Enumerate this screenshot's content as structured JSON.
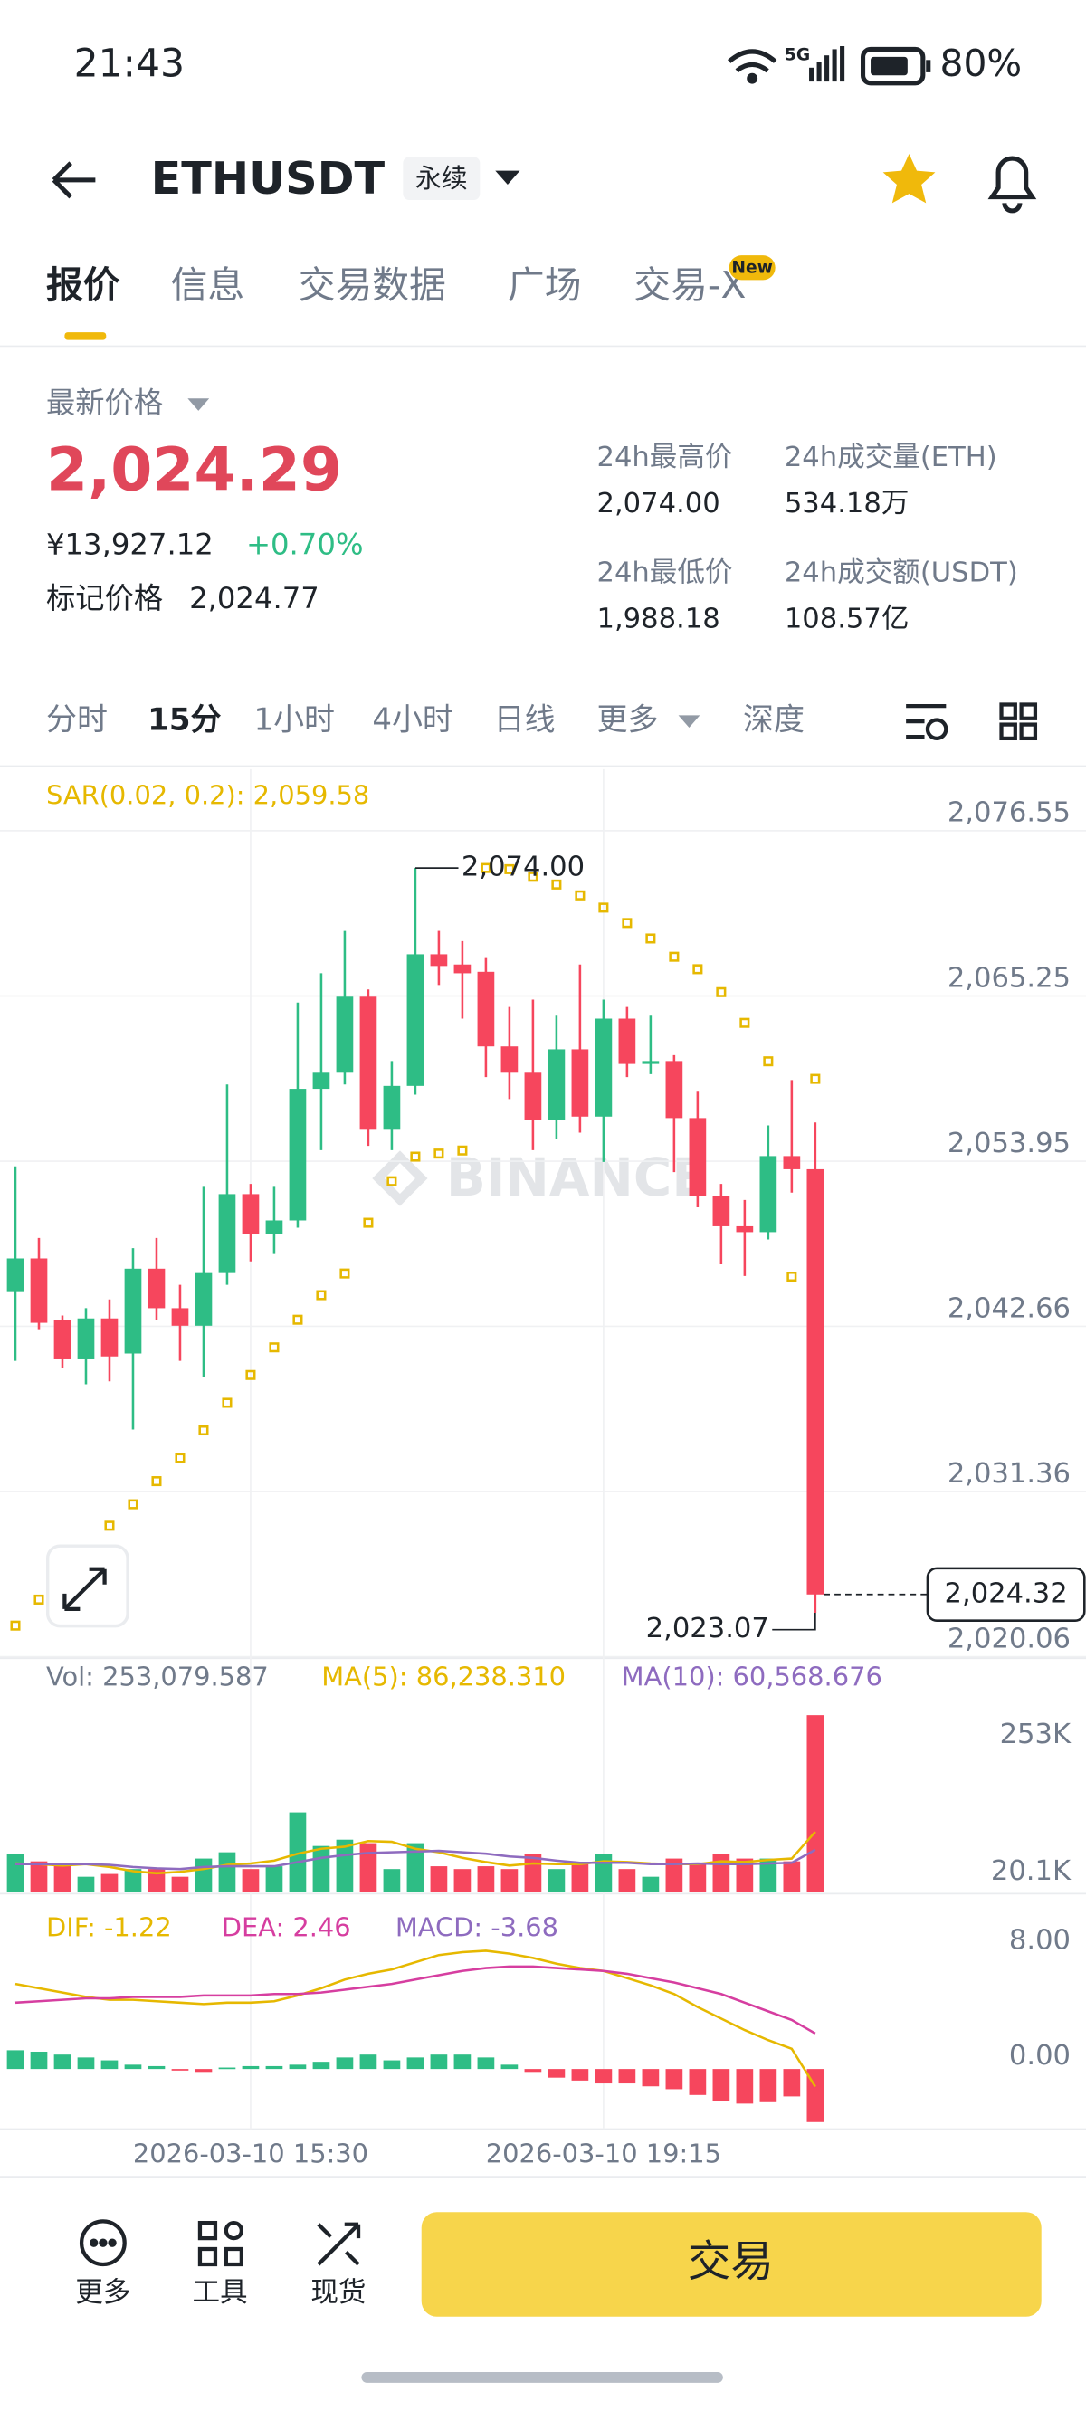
{
  "status_bar": {
    "time": "21:43",
    "network": "5G",
    "battery": "80%"
  },
  "header": {
    "symbol": "ETHUSDT",
    "contract_type": "永续"
  },
  "tabs": [
    "报价",
    "信息",
    "交易数据",
    "广场",
    "交易-X"
  ],
  "tab_badge": "New",
  "price_panel": {
    "label": "最新价格",
    "last_price": "2,024.29",
    "cny_price": "¥13,927.12",
    "change": "+0.70%",
    "mark_price_label": "标记价格",
    "mark_price": "2,024.77",
    "stats": [
      {
        "label": "24h最高价",
        "value": "2,074.00"
      },
      {
        "label": "24h成交量(ETH)",
        "value": "534.18万"
      },
      {
        "label": "24h最低价",
        "value": "1,988.18"
      },
      {
        "label": "24h成交额(USDT)",
        "value": "108.57亿"
      }
    ]
  },
  "intervals": [
    "分时",
    "15分",
    "1小时",
    "4小时",
    "日线",
    "更多",
    "深度"
  ],
  "chart": {
    "type": "candlestick",
    "watermark": "BINANCE",
    "up_color": "#2ebd85",
    "down_color": "#f6465d",
    "categories": [
      null,
      null,
      null,
      null,
      null,
      null,
      null,
      null,
      null,
      null,
      "2026-03-10 15:30",
      null,
      null,
      null,
      null,
      null,
      null,
      null,
      null,
      null,
      null,
      null,
      null,
      null,
      null,
      "2026-03-10 19:15",
      null,
      null,
      null,
      null,
      null,
      null,
      null,
      null,
      null
    ],
    "open": [
      2045.0,
      2047.3,
      2043.1,
      2040.4,
      2043.2,
      2040.8,
      2046.6,
      2043.9,
      2042.7,
      2046.3,
      2051.7,
      2049.0,
      2049.9,
      2058.9,
      2060.0,
      2065.2,
      2056.1,
      2059.1,
      2068.1,
      2067.4,
      2066.9,
      2061.8,
      2060.0,
      2056.8,
      2061.6,
      2057.0,
      2063.7,
      2060.6,
      2060.8,
      2056.9,
      2051.6,
      2049.5,
      2049.1,
      2054.3,
      2053.4
    ],
    "high": [
      2053.6,
      2048.7,
      2043.4,
      2043.9,
      2044.5,
      2048.0,
      2048.7,
      2045.5,
      2052.2,
      2059.2,
      2052.4,
      2052.2,
      2064.8,
      2066.8,
      2069.7,
      2065.7,
      2060.8,
      2074.0,
      2069.7,
      2069.0,
      2067.9,
      2064.5,
      2065.0,
      2063.9,
      2067.4,
      2065.0,
      2064.5,
      2063.9,
      2061.2,
      2058.7,
      2052.4,
      2051.3,
      2056.4,
      2059.5,
      2056.6
    ],
    "low": [
      2040.3,
      2042.4,
      2039.8,
      2038.7,
      2038.9,
      2035.6,
      2043.1,
      2040.3,
      2039.2,
      2045.5,
      2047.1,
      2047.6,
      2049.4,
      2054.7,
      2059.2,
      2055.0,
      2054.7,
      2058.5,
      2066.0,
      2063.7,
      2059.7,
      2058.2,
      2054.7,
      2055.5,
      2055.9,
      2053.9,
      2059.7,
      2059.9,
      2053.2,
      2050.8,
      2046.9,
      2046.1,
      2048.6,
      2051.8,
      2023.07
    ],
    "close": [
      2047.3,
      2042.9,
      2040.4,
      2043.2,
      2040.6,
      2046.6,
      2043.9,
      2042.7,
      2046.3,
      2051.7,
      2049.0,
      2049.9,
      2058.9,
      2060.0,
      2065.2,
      2056.1,
      2059.1,
      2068.1,
      2067.3,
      2066.8,
      2061.8,
      2060.0,
      2056.8,
      2061.6,
      2057.0,
      2063.7,
      2060.6,
      2060.8,
      2056.9,
      2051.6,
      2049.5,
      2049.1,
      2054.3,
      2053.4,
      2024.32
    ],
    "ylim": [
      2020.06,
      2080.76
    ],
    "yticks": [
      {
        "value": 2076.55,
        "label": "2,076.55"
      },
      {
        "value": 2065.25,
        "label": "2,065.25"
      },
      {
        "value": 2053.95,
        "label": "2,053.95"
      },
      {
        "value": 2042.66,
        "label": "2,042.66"
      },
      {
        "value": 2031.36,
        "label": "2,031.36"
      },
      {
        "value": 2020.06,
        "label": "2,020.06"
      }
    ],
    "high_label": "2,074.00",
    "low_label": "2,023.07",
    "current_price": {
      "value": 2024.32,
      "label": "2,024.32"
    },
    "sar": {
      "label": "SAR(0.02, 0.2): 2,059.58",
      "color": "#e6b800",
      "values": [
        2022.19,
        2023.97,
        2025.66,
        2027.34,
        2029.02,
        2030.49,
        2032.07,
        2033.65,
        2035.54,
        2037.43,
        2039.33,
        2041.22,
        2043.11,
        2044.79,
        2046.27,
        2049.74,
        2052.58,
        2054.26,
        2054.47,
        2054.68,
        2074.0,
        2073.92,
        2073.4,
        2072.87,
        2072.13,
        2071.29,
        2070.24,
        2069.18,
        2067.93,
        2067.08,
        2065.51,
        2063.41,
        2060.78,
        2046.06,
        2059.58
      ]
    },
    "volume": {
      "legend": [
        {
          "text": "Vol: 253,079.587",
          "color": "#707a8a"
        },
        {
          "text": "MA(5): 86,238.310",
          "color": "#e6b800"
        },
        {
          "text": "MA(10): 60,568.676",
          "color": "#8e6bbf"
        }
      ],
      "values": [
        55000,
        44000,
        40000,
        22000,
        26000,
        33000,
        33000,
        22000,
        48000,
        57000,
        33000,
        37000,
        114000,
        66000,
        75000,
        70000,
        33000,
        70000,
        37000,
        33000,
        37000,
        33000,
        55000,
        33000,
        40000,
        55000,
        33000,
        22000,
        48000,
        40000,
        55000,
        48000,
        48000,
        44000,
        253079.587
      ],
      "ma5": {
        "color": "#e6b800",
        "values": [
          41000,
          40000,
          38000,
          40000,
          36000,
          30000,
          27000,
          29000,
          33000,
          39000,
          41000,
          45000,
          55000,
          62000,
          65000,
          73000,
          72000,
          62000,
          57000,
          49000,
          43000,
          38000,
          41000,
          40000,
          40000,
          44000,
          43000,
          41000,
          40000,
          40000,
          44000,
          43000,
          46000,
          48000,
          86238.31
        ]
      },
      "ma10": {
        "color": "#8e6bbf",
        "values": [
          40000,
          40000,
          40000,
          40000,
          39000,
          36000,
          34000,
          33000,
          36000,
          37000,
          37000,
          37000,
          43000,
          49000,
          53000,
          56000,
          57000,
          58000,
          59000,
          57000,
          55000,
          51000,
          49000,
          45000,
          42000,
          42000,
          42000,
          40000,
          40000,
          41000,
          40000,
          40000,
          41000,
          42000,
          60568.676
        ]
      },
      "ylim": [
        0,
        275000
      ],
      "yticks": [
        {
          "value": 253000,
          "label": "253K"
        },
        {
          "value": 20100,
          "label": "20.1K"
        }
      ]
    },
    "macd": {
      "legend": [
        {
          "text": "DIF: -1.22",
          "color": "#e6b800"
        },
        {
          "text": "DEA: 2.46",
          "color": "#d63ea0"
        },
        {
          "text": "MACD: -3.68",
          "color": "#8e6bbf"
        }
      ],
      "dif": {
        "color": "#e6b800",
        "values": [
          5.9,
          5.6,
          5.3,
          5.0,
          4.8,
          4.8,
          4.7,
          4.6,
          4.5,
          4.6,
          4.6,
          4.7,
          5.1,
          5.6,
          6.2,
          6.6,
          6.9,
          7.4,
          7.9,
          8.1,
          8.2,
          8.0,
          7.7,
          7.3,
          7.0,
          6.8,
          6.3,
          5.8,
          5.2,
          4.3,
          3.5,
          2.7,
          2.0,
          1.4,
          -1.22
        ]
      },
      "dea": {
        "color": "#d63ea0",
        "values": [
          4.6,
          4.7,
          4.8,
          4.9,
          4.9,
          5.0,
          5.0,
          5.0,
          5.1,
          5.1,
          5.1,
          5.2,
          5.2,
          5.3,
          5.5,
          5.7,
          5.9,
          6.2,
          6.5,
          6.8,
          7.0,
          7.1,
          7.1,
          7.0,
          6.9,
          6.8,
          6.6,
          6.3,
          6.0,
          5.6,
          5.2,
          4.6,
          4.0,
          3.4,
          2.46
        ]
      },
      "hist": [
        1.3,
        1.2,
        1.0,
        0.8,
        0.6,
        0.3,
        0.2,
        -0.1,
        -0.2,
        0.1,
        0.2,
        0.2,
        0.3,
        0.5,
        0.8,
        1.0,
        0.6,
        0.8,
        1.0,
        1.0,
        0.8,
        0.3,
        -0.2,
        -0.6,
        -0.8,
        -1.0,
        -1.0,
        -1.2,
        -1.4,
        -1.8,
        -2.2,
        -2.4,
        -2.3,
        -1.9,
        -3.68
      ],
      "ylim": [
        -4.16,
        12.05
      ],
      "yticks": [
        {
          "value": 8,
          "label": "8.00"
        },
        {
          "value": 0,
          "label": "0.00"
        }
      ]
    }
  },
  "bottom_bar": {
    "actions": [
      "更多",
      "工具",
      "现货"
    ],
    "trade_button": "交易"
  }
}
